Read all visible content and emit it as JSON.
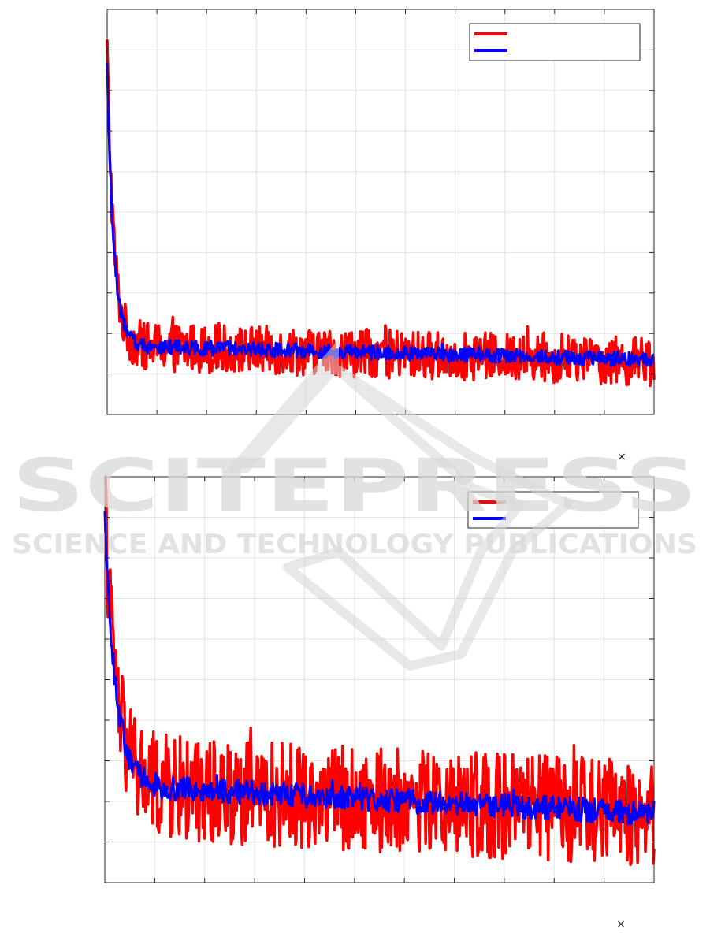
{
  "watermark": {
    "line1": "SCITEPRESS",
    "line2": "SCIENCE AND TECHNOLOGY PUBLICATIONS"
  },
  "colors": {
    "series_a": "#ff0000",
    "series_b": "#0000ff",
    "grid": "#e3e3e3",
    "axis": "#262626",
    "watermark": "#d8d8d8"
  },
  "chart_data": [
    {
      "type": "line",
      "title": "",
      "xlabel": "",
      "ylabel": "",
      "x_exponent_marker": "×",
      "grid": true,
      "legend_position": "top-right",
      "x_range": [
        0,
        1
      ],
      "y_range": [
        0,
        1
      ],
      "series": [
        {
          "key": "band_red",
          "color": "#ff0000",
          "start": 0.9,
          "tail": 0.13,
          "mid_tail": 0.17,
          "decay": 0.012,
          "spread": 0.06,
          "spike": 0.05
        },
        {
          "key": "mean_blue",
          "color": "#0000ff",
          "start": 0.85,
          "tail": 0.135,
          "mid_tail": 0.17,
          "decay": 0.012,
          "spread": 0.018,
          "spike": 0.01
        }
      ],
      "legend_entries": [
        {
          "name": "",
          "color": "#ff0000"
        },
        {
          "name": "",
          "color": "#0000ff"
        }
      ]
    },
    {
      "type": "line",
      "title": "",
      "xlabel": "",
      "ylabel": "",
      "x_exponent_marker": "×",
      "grid": true,
      "legend_position": "top-right",
      "x_range": [
        0,
        1
      ],
      "y_range": [
        0,
        1
      ],
      "series": [
        {
          "key": "band_red",
          "color": "#ff0000",
          "start": 0.95,
          "tail": 0.17,
          "mid_tail": 0.24,
          "decay": 0.02,
          "spread": 0.13,
          "spike": 0.08
        },
        {
          "key": "mean_blue",
          "color": "#0000ff",
          "start": 0.9,
          "tail": 0.17,
          "mid_tail": 0.24,
          "decay": 0.02,
          "spread": 0.03,
          "spike": 0.02
        }
      ],
      "legend_entries": [
        {
          "name": "",
          "color": "#ff0000"
        },
        {
          "name": "",
          "color": "#0000ff"
        }
      ]
    }
  ]
}
